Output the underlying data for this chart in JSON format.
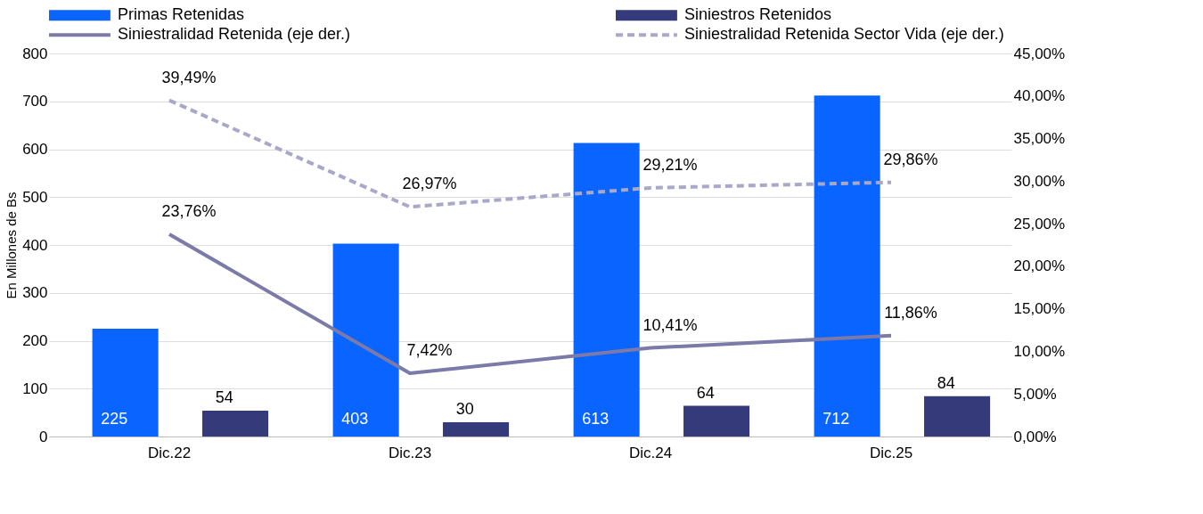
{
  "chart_data": {
    "type": "bar",
    "categories": [
      "Dic.22",
      "Dic.23",
      "Dic.24",
      "Dic.25"
    ],
    "ylabel": "En Millones de Bs",
    "ylim": [
      0,
      800
    ],
    "yticks": [
      0,
      100,
      200,
      300,
      400,
      500,
      600,
      700,
      800
    ],
    "y2lim": [
      0,
      45
    ],
    "y2ticks": [
      {
        "value": 0,
        "label": "0,00%"
      },
      {
        "value": 5,
        "label": "5,00%"
      },
      {
        "value": 10,
        "label": "10,00%"
      },
      {
        "value": 15,
        "label": "15,00%"
      },
      {
        "value": 20,
        "label": "20,00%"
      },
      {
        "value": 25,
        "label": "25,00%"
      },
      {
        "value": 30,
        "label": "30,00%"
      },
      {
        "value": 35,
        "label": "35,00%"
      },
      {
        "value": 40,
        "label": "40,00%"
      },
      {
        "value": 45,
        "label": "45,00%"
      }
    ],
    "grid": "y",
    "legend": "top",
    "series": [
      {
        "name": "Primas Retenidas",
        "color": "#0a64ff",
        "values": [
          225,
          403,
          613,
          712
        ],
        "value_labels": [
          "225",
          "403",
          "613",
          "712"
        ]
      },
      {
        "name": "Siniestros Retenidos",
        "color": "#353a7a",
        "values": [
          54,
          30,
          64,
          84
        ],
        "value_labels": [
          "54",
          "30",
          "64",
          "84"
        ]
      },
      {
        "name": "Siniestralidad Retenida (eje der.)",
        "type": "line",
        "axis": "y2",
        "line_style": "solid",
        "color": "#7b7aa8",
        "values": [
          23.76,
          7.42,
          10.41,
          11.86
        ],
        "value_labels": [
          "23,76%",
          "7,42%",
          "10,41%",
          "11,86%"
        ]
      },
      {
        "name": "Siniestralidad Retenida Sector Vida (eje der.)",
        "type": "line",
        "axis": "y2",
        "line_style": "dashed",
        "color": "#a9a8c8",
        "values": [
          39.49,
          26.97,
          29.21,
          29.86
        ],
        "value_labels": [
          "39,49%",
          "26,97%",
          "29,21%",
          "29,86%"
        ]
      }
    ]
  }
}
